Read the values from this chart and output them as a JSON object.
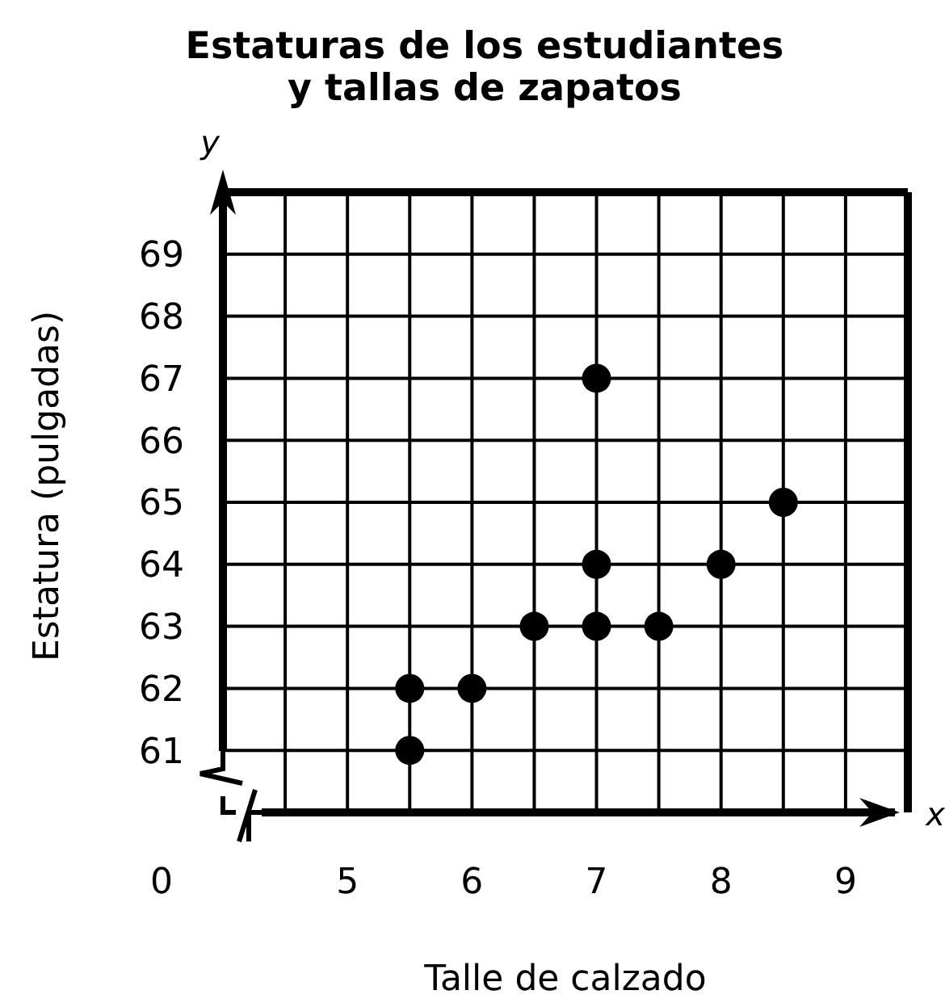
{
  "chart_data": {
    "type": "scatter",
    "title": "Estaturas de los estudiantes y tallas de zapatos",
    "xlabel": "Talle de calzado",
    "ylabel": "Estatura (pulgadas)",
    "annotations": [
      "y",
      "x",
      "0"
    ],
    "series": [
      {
        "color": "#000000",
        "x": [
          5.5,
          5.5,
          6,
          6.5,
          7,
          7,
          7,
          7.5,
          8,
          8.5
        ],
        "values": [
          61,
          62,
          62,
          63,
          67,
          64,
          63,
          63,
          64,
          65
        ]
      }
    ],
    "xlim": [
      4,
      9.5
    ],
    "xticks": [
      {
        "value": 4.5,
        "label": null
      },
      5,
      {
        "value": 5.5,
        "label": null
      },
      6,
      {
        "value": 6.5,
        "label": null
      },
      7,
      {
        "value": 7.5,
        "label": null
      },
      8,
      {
        "value": 8.5,
        "label": null
      },
      9
    ],
    "ylim": [
      60,
      70
    ],
    "yticks": [
      61,
      62,
      63,
      64,
      65,
      66,
      67,
      68,
      69
    ],
    "grid": true,
    "marker": "circle"
  }
}
